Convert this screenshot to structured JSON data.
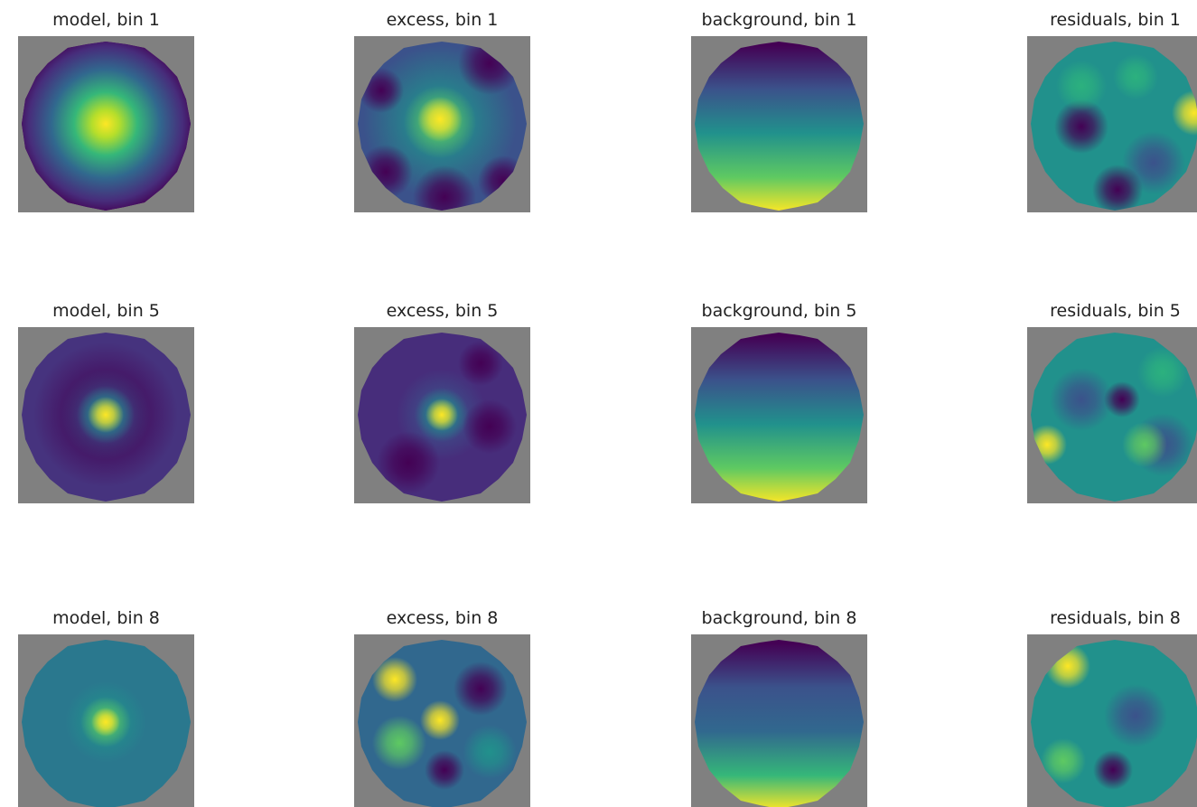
{
  "panels": [
    {
      "title": "model, bin 1"
    },
    {
      "title": "excess, bin 1"
    },
    {
      "title": "background, bin 1"
    },
    {
      "title": "residuals, bin 1"
    },
    {
      "title": "model, bin 5"
    },
    {
      "title": "excess, bin 5"
    },
    {
      "title": "background, bin 5"
    },
    {
      "title": "residuals, bin 5"
    },
    {
      "title": "model, bin 8"
    },
    {
      "title": "excess, bin 8"
    },
    {
      "title": "background, bin 8"
    },
    {
      "title": "residuals, bin 8"
    }
  ]
}
